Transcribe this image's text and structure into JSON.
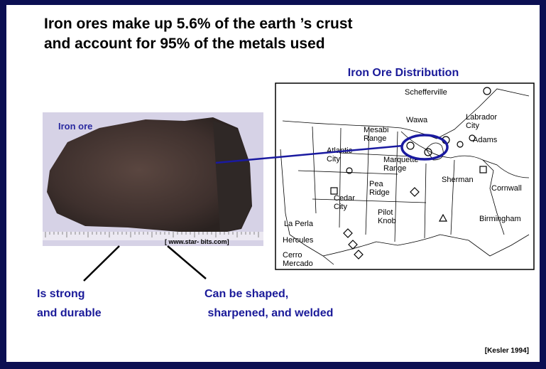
{
  "title": [
    "Iron ores make up 5.6% of the earth ’s crust",
    "and account for 95% of the metals used"
  ],
  "photo": {
    "label": "Iron ore",
    "credit": "[ www.star-  bits.com]"
  },
  "map": {
    "title": "Iron Ore Distribution",
    "labels": [
      [
        "Schefferville"
      ],
      [
        "Wawa"
      ],
      [
        "Labrador",
        "City"
      ],
      [
        "Mesabi",
        "Range"
      ],
      [
        "Adams"
      ],
      [
        "Atlantic",
        "City"
      ],
      [
        "Marquette",
        "Range"
      ],
      [
        "Sherman"
      ],
      [
        "Cornwall"
      ],
      [
        "Pea",
        "Ridge"
      ],
      [
        "Cedar",
        "City"
      ],
      [
        "Pilot",
        "Knob"
      ],
      [
        "Birmingham"
      ],
      [
        "La Perla"
      ],
      [
        "Hercules"
      ],
      [
        "Cerro",
        "Mercado"
      ]
    ]
  },
  "notes": [
    [
      "Is strong",
      "and durable"
    ],
    [
      "Can be shaped,",
      " sharpened, and welded"
    ]
  ],
  "citation": "[Kesler 1994]"
}
